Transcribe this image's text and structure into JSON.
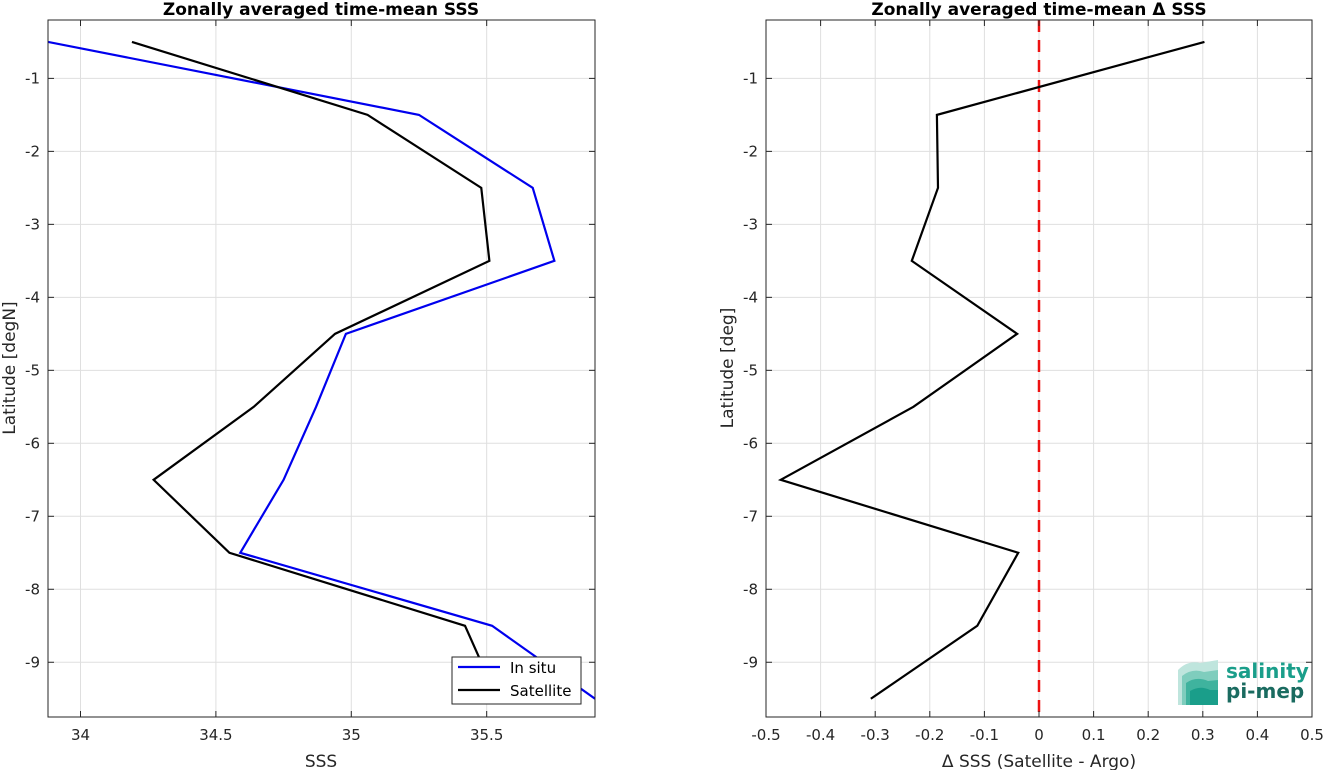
{
  "chart_data": [
    {
      "type": "line",
      "title": "Zonally averaged time-mean SSS",
      "xlabel": "SSS",
      "ylabel": "Latitude [degN]",
      "xlim": [
        33.88,
        35.9
      ],
      "ylim": [
        -9.75,
        -0.2
      ],
      "xticks": [
        34,
        34.5,
        35,
        35.5
      ],
      "yticks": [
        -1,
        -2,
        -3,
        -4,
        -5,
        -6,
        -7,
        -8,
        -9
      ],
      "grid": true,
      "legend_position": "bottom-right",
      "legend": [
        "In situ",
        "Satellite"
      ],
      "series": [
        {
          "name": "In situ",
          "color": "#0000ee",
          "points": [
            [
              33.88,
              -0.5
            ],
            [
              35.25,
              -1.5
            ],
            [
              35.67,
              -2.5
            ],
            [
              35.75,
              -3.5
            ],
            [
              34.98,
              -4.5
            ],
            [
              34.87,
              -5.5
            ],
            [
              34.75,
              -6.5
            ],
            [
              34.59,
              -7.5
            ],
            [
              35.52,
              -8.5
            ],
            [
              35.9,
              -9.5
            ]
          ]
        },
        {
          "name": "Satellite",
          "color": "#000000",
          "points": [
            [
              34.19,
              -0.5
            ],
            [
              35.06,
              -1.5
            ],
            [
              35.48,
              -2.5
            ],
            [
              35.51,
              -3.5
            ],
            [
              34.94,
              -4.5
            ],
            [
              34.64,
              -5.5
            ],
            [
              34.27,
              -6.5
            ],
            [
              34.55,
              -7.5
            ],
            [
              35.42,
              -8.5
            ],
            [
              35.48,
              -9.0
            ]
          ]
        }
      ]
    },
    {
      "type": "line",
      "title": "Zonally averaged time-mean Δ SSS",
      "xlabel": "Δ SSS (Satellite - Argo)",
      "ylabel": "Latitude [deg]",
      "xlim": [
        -0.5,
        0.5
      ],
      "ylim": [
        -9.75,
        -0.2
      ],
      "xticks": [
        -0.5,
        -0.4,
        -0.3,
        -0.2,
        -0.1,
        0,
        0.1,
        0.2,
        0.3,
        0.4,
        0.5
      ],
      "yticks": [
        -1,
        -2,
        -3,
        -4,
        -5,
        -6,
        -7,
        -8,
        -9
      ],
      "grid": true,
      "reference_line": {
        "x": 0,
        "color": "#ee1111",
        "style": "dashed"
      },
      "series": [
        {
          "color": "#000000",
          "points": [
            [
              0.303,
              -0.5
            ],
            [
              -0.187,
              -1.5
            ],
            [
              -0.185,
              -2.5
            ],
            [
              -0.233,
              -3.5
            ],
            [
              -0.04,
              -4.5
            ],
            [
              -0.23,
              -5.5
            ],
            [
              -0.473,
              -6.5
            ],
            [
              -0.038,
              -7.5
            ],
            [
              -0.113,
              -8.5
            ],
            [
              -0.308,
              -9.5
            ]
          ]
        }
      ]
    }
  ],
  "logo": {
    "line1": "salinity",
    "line2": "pi-mep",
    "color": "#1a9e8a"
  }
}
